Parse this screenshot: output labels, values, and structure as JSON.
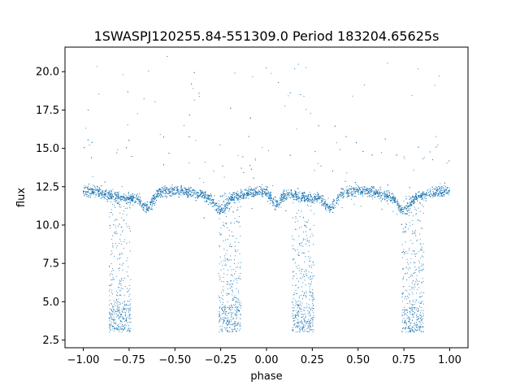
{
  "chart_data": {
    "type": "scatter",
    "title": "1SWASPJ120255.84-551309.0 Period 183204.65625s",
    "xlabel": "phase",
    "ylabel": "flux",
    "xlim": [
      -1.1,
      1.1
    ],
    "ylim": [
      2.0,
      21.6
    ],
    "xticks": [
      -1.0,
      -0.75,
      -0.5,
      -0.25,
      0.0,
      0.25,
      0.5,
      0.75,
      1.0
    ],
    "xtick_labels": [
      "−1.00",
      "−0.75",
      "−0.50",
      "−0.25",
      "0.00",
      "0.25",
      "0.50",
      "0.75",
      "1.00"
    ],
    "yticks": [
      2.5,
      5.0,
      7.5,
      10.0,
      12.5,
      15.0,
      17.5,
      20.0
    ],
    "ytick_labels": [
      "2.5",
      "5.0",
      "7.5",
      "10.0",
      "12.5",
      "15.0",
      "17.5",
      "20.0"
    ],
    "grid": false,
    "legend": "none",
    "marker_color": "#1f77b4",
    "series": [
      {
        "baseline_flux": 12.0,
        "phase_range": [
          -1.0,
          1.0
        ],
        "primary_eclipse_phases": [
          -0.8,
          0.2
        ],
        "secondary_eclipse_phases": [
          -0.2,
          0.8
        ],
        "eclipse_min_flux": 3.0,
        "shallow_dip_phases": [
          -0.65,
          -0.25,
          0.05,
          0.35,
          0.75
        ],
        "shallow_dip_flux": 11.2,
        "max_flux": 20.6
      }
    ]
  }
}
